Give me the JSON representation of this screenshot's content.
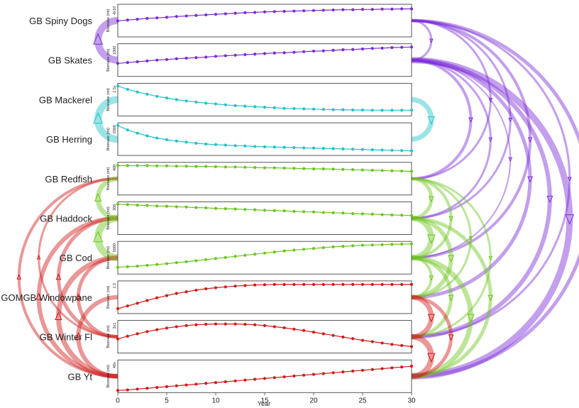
{
  "colors": {
    "purple": "#7a2bd6",
    "cyan": "#1fc4c8",
    "green": "#6cc51c",
    "red": "#d11919"
  },
  "chart_data": {
    "type": "line",
    "xlabel": "Year",
    "xlim": [
      0,
      30
    ],
    "xticks": [
      "0",
      "5",
      "10",
      "15",
      "20",
      "25",
      "30"
    ],
    "ylabel": "Biomass (mt)",
    "series": [
      {
        "name": "GB Spiny Dogs",
        "group": "purple",
        "ytick": "4x10",
        "ylim": [
          0,
          1.2
        ],
        "values": [
          0.59,
          0.62,
          0.65,
          0.68,
          0.7,
          0.72,
          0.75,
          0.77,
          0.79,
          0.81,
          0.83,
          0.85,
          0.87,
          0.89,
          0.9,
          0.92,
          0.93,
          0.94,
          0.95,
          0.96,
          0.97,
          0.98,
          0.99,
          1.0,
          1.0,
          1.01,
          1.01,
          1.02,
          1.02,
          1.03,
          1.03
        ]
      },
      {
        "name": "GB Skates",
        "group": "purple",
        "ytick": "1000",
        "ylim": [
          0,
          1.2
        ],
        "values": [
          0.48,
          0.51,
          0.54,
          0.57,
          0.6,
          0.62,
          0.65,
          0.67,
          0.69,
          0.71,
          0.74,
          0.76,
          0.78,
          0.8,
          0.82,
          0.84,
          0.86,
          0.87,
          0.89,
          0.91,
          0.93,
          0.94,
          0.96,
          0.98,
          0.99,
          1.01,
          1.03,
          1.04,
          1.06,
          1.07,
          1.08
        ]
      },
      {
        "name": "GB Mackerel",
        "group": "cyan",
        "ytick": "1.5x",
        "ylim": [
          0,
          1.2
        ],
        "values": [
          1.1,
          0.98,
          0.88,
          0.8,
          0.72,
          0.66,
          0.6,
          0.55,
          0.51,
          0.47,
          0.44,
          0.41,
          0.38,
          0.36,
          0.34,
          0.32,
          0.3,
          0.28,
          0.27,
          0.26,
          0.25,
          0.24,
          0.23,
          0.23,
          0.22,
          0.22,
          0.21,
          0.21,
          0.21,
          0.21,
          0.21
        ]
      },
      {
        "name": "GB Herring",
        "group": "cyan",
        "ytick": "2000",
        "ylim": [
          0,
          1.2
        ],
        "values": [
          1.1,
          0.94,
          0.82,
          0.72,
          0.64,
          0.58,
          0.53,
          0.49,
          0.45,
          0.42,
          0.4,
          0.38,
          0.36,
          0.35,
          0.33,
          0.32,
          0.31,
          0.3,
          0.29,
          0.28,
          0.27,
          0.26,
          0.25,
          0.24,
          0.23,
          0.22,
          0.21,
          0.2,
          0.19,
          0.18,
          0.17
        ]
      },
      {
        "name": "GB Redfish",
        "group": "green",
        "ytick": "400",
        "ylim": [
          0,
          1.2
        ],
        "values": [
          1.08,
          1.08,
          1.08,
          1.08,
          1.07,
          1.07,
          1.06,
          1.06,
          1.05,
          1.05,
          1.04,
          1.03,
          1.03,
          1.02,
          1.01,
          1.0,
          1.0,
          0.99,
          0.98,
          0.97,
          0.96,
          0.96,
          0.95,
          0.94,
          0.93,
          0.92,
          0.91,
          0.9,
          0.89,
          0.88,
          0.87
        ]
      },
      {
        "name": "GB Haddock",
        "group": "green",
        "ytick": "300",
        "ylim": [
          0,
          1.2
        ],
        "values": [
          1.12,
          1.1,
          1.08,
          1.07,
          1.05,
          1.04,
          1.02,
          1.01,
          0.99,
          0.98,
          0.96,
          0.95,
          0.94,
          0.92,
          0.91,
          0.89,
          0.88,
          0.87,
          0.85,
          0.84,
          0.83,
          0.81,
          0.8,
          0.79,
          0.77,
          0.76,
          0.75,
          0.73,
          0.72,
          0.71,
          0.7
        ]
      },
      {
        "name": "GB Cod",
        "group": "green",
        "ytick": "5000",
        "ylim": [
          0,
          1.2
        ],
        "values": [
          0.25,
          0.27,
          0.29,
          0.32,
          0.35,
          0.38,
          0.42,
          0.45,
          0.49,
          0.53,
          0.57,
          0.61,
          0.65,
          0.69,
          0.73,
          0.77,
          0.81,
          0.85,
          0.88,
          0.91,
          0.94,
          0.97,
          1.0,
          1.02,
          1.04,
          1.06,
          1.07,
          1.08,
          1.09,
          1.1,
          1.1
        ]
      },
      {
        "name": "GOMGB Windowpane",
        "group": "red",
        "ytick": "1.5",
        "ylim": [
          0,
          1.2
        ],
        "values": [
          0.18,
          0.28,
          0.38,
          0.48,
          0.58,
          0.66,
          0.74,
          0.8,
          0.86,
          0.91,
          0.95,
          0.98,
          1.01,
          1.03,
          1.05,
          1.06,
          1.07,
          1.07,
          1.07,
          1.07,
          1.07,
          1.07,
          1.07,
          1.07,
          1.07,
          1.07,
          1.07,
          1.07,
          1.07,
          1.07,
          1.07
        ]
      },
      {
        "name": "GB Winter Fl",
        "group": "red",
        "ytick": "3x1",
        "ylim": [
          0,
          1.2
        ],
        "values": [
          0.52,
          0.62,
          0.71,
          0.79,
          0.86,
          0.92,
          0.97,
          1.01,
          1.04,
          1.06,
          1.07,
          1.07,
          1.07,
          1.06,
          1.04,
          1.01,
          0.97,
          0.93,
          0.88,
          0.83,
          0.77,
          0.71,
          0.65,
          0.59,
          0.53,
          0.47,
          0.42,
          0.37,
          0.32,
          0.28,
          0.24
        ]
      },
      {
        "name": "GB Yt",
        "group": "red",
        "ytick": "40x",
        "ylim": [
          0,
          1.2
        ],
        "values": [
          0.08,
          0.1,
          0.13,
          0.16,
          0.19,
          0.22,
          0.25,
          0.28,
          0.31,
          0.34,
          0.37,
          0.4,
          0.43,
          0.46,
          0.49,
          0.52,
          0.55,
          0.58,
          0.61,
          0.64,
          0.67,
          0.7,
          0.73,
          0.76,
          0.79,
          0.82,
          0.85,
          0.88,
          0.91,
          0.94,
          0.97
        ]
      }
    ],
    "interactions": [
      {
        "from": "GB Spiny Dogs",
        "to": "GB Skates",
        "group": "purple",
        "weight": 3
      },
      {
        "from": "GB Spiny Dogs",
        "to": "GB Redfish",
        "group": "purple",
        "weight": 3
      },
      {
        "from": "GB Spiny Dogs",
        "to": "GB Haddock",
        "group": "purple",
        "weight": 3
      },
      {
        "from": "GB Spiny Dogs",
        "to": "GB Cod",
        "group": "purple",
        "weight": 4
      },
      {
        "from": "GB Spiny Dogs",
        "to": "GB Winter Fl",
        "group": "purple",
        "weight": 3
      },
      {
        "from": "GB Spiny Dogs",
        "to": "GB Yt",
        "group": "purple",
        "weight": 5
      },
      {
        "from": "GB Skates",
        "to": "GB Redfish",
        "group": "purple",
        "weight": 4
      },
      {
        "from": "GB Skates",
        "to": "GB Haddock",
        "group": "purple",
        "weight": 3
      },
      {
        "from": "GB Skates",
        "to": "GB Cod",
        "group": "purple",
        "weight": 2
      },
      {
        "from": "GB Skates",
        "to": "GB Windowpane",
        "group": "purple",
        "weight": 5
      },
      {
        "from": "GB Skates",
        "to": "GB Winter Fl",
        "group": "purple",
        "weight": 6
      },
      {
        "from": "GB Skates",
        "to": "GB Yt",
        "group": "purple",
        "weight": 9
      },
      {
        "from": "GB Mackerel",
        "to": "GB Herring",
        "group": "cyan",
        "weight": 7
      },
      {
        "from": "GB Redfish",
        "to": "GB Haddock",
        "group": "green",
        "weight": 5
      },
      {
        "from": "GB Redfish",
        "to": "GB Cod",
        "group": "green",
        "weight": 4
      },
      {
        "from": "GB Redfish",
        "to": "GB Windowpane",
        "group": "green",
        "weight": 3
      },
      {
        "from": "GB Redfish",
        "to": "GB Winter Fl",
        "group": "green",
        "weight": 3
      },
      {
        "from": "GB Haddock",
        "to": "GB Cod",
        "group": "green",
        "weight": 8
      },
      {
        "from": "GB Haddock",
        "to": "GB Windowpane",
        "group": "green",
        "weight": 6
      },
      {
        "from": "GB Haddock",
        "to": "GB Yt",
        "group": "green",
        "weight": 5
      },
      {
        "from": "GB Cod",
        "to": "GB Windowpane",
        "group": "green",
        "weight": 4
      },
      {
        "from": "GB Cod",
        "to": "GB Winter Fl",
        "group": "green",
        "weight": 5
      },
      {
        "from": "GB Cod",
        "to": "GB Yt",
        "group": "green",
        "weight": 7
      },
      {
        "from": "GOMGB Windowpane",
        "to": "GB Winter Fl",
        "group": "red",
        "weight": 7
      },
      {
        "from": "GOMGB Windowpane",
        "to": "GB Yt",
        "group": "red",
        "weight": 5
      },
      {
        "from": "GB Winter Fl",
        "to": "GB Yt",
        "group": "red",
        "weight": 8
      },
      {
        "from": "GB Redfish",
        "to": "GB Winter Fl",
        "group": "red",
        "weight": 3,
        "side": "left"
      },
      {
        "from": "GB Redfish",
        "to": "GB Yt",
        "group": "red",
        "weight": 4,
        "side": "left"
      },
      {
        "from": "GB Haddock",
        "to": "GB Winter Fl",
        "group": "red",
        "weight": 5,
        "side": "left"
      },
      {
        "from": "GB Haddock",
        "to": "GB Yt",
        "group": "red",
        "weight": 6,
        "side": "left"
      },
      {
        "from": "GB Cod",
        "to": "GB Winter Fl",
        "group": "red",
        "weight": 5,
        "side": "left"
      },
      {
        "from": "GB Cod",
        "to": "GB Yt",
        "group": "red",
        "weight": 7,
        "side": "left"
      },
      {
        "from": "GOMGB Windowpane",
        "to": "GB Yt",
        "group": "red",
        "weight": 6,
        "side": "left"
      },
      {
        "from": "GB Spiny Dogs",
        "to": "GB Skates",
        "group": "purple",
        "weight": 10,
        "side": "left"
      },
      {
        "from": "GB Mackerel",
        "to": "GB Herring",
        "group": "cyan",
        "weight": 10,
        "side": "left"
      },
      {
        "from": "GB Haddock",
        "to": "GB Cod",
        "group": "green",
        "weight": 10,
        "side": "left"
      },
      {
        "from": "GB Redfish",
        "to": "GB Haddock",
        "group": "green",
        "weight": 7,
        "side": "left"
      }
    ]
  }
}
